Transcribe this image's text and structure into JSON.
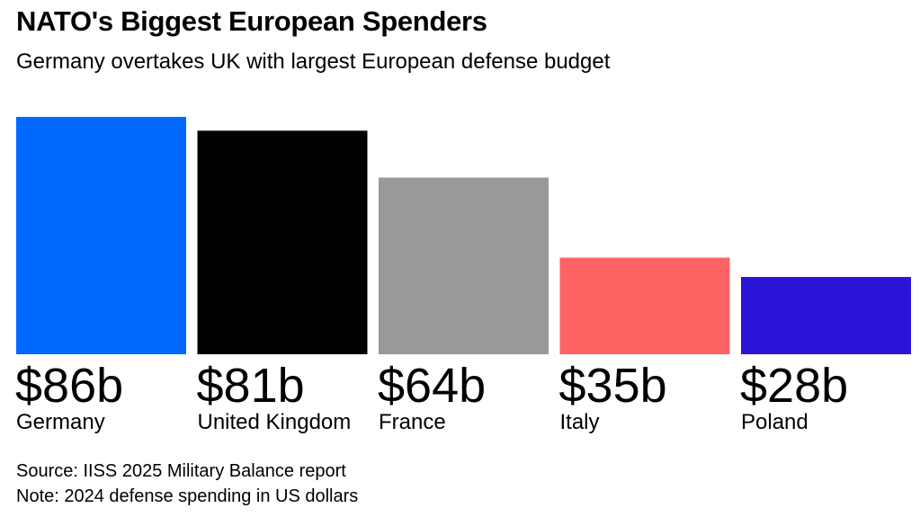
{
  "chart_data": {
    "type": "bar",
    "title": "NATO's Biggest European Spenders",
    "subtitle": "Germany overtakes UK with largest European defense budget",
    "categories": [
      "Germany",
      "United Kingdom",
      "France",
      "Italy",
      "Poland"
    ],
    "values": [
      86,
      81,
      64,
      35,
      28
    ],
    "value_labels": [
      "$86b",
      "$81b",
      "$64b",
      "$35b",
      "$28b"
    ],
    "colors": [
      "#0068FF",
      "#000000",
      "#999999",
      "#FF6464",
      "#2A14D8"
    ],
    "unit": "US dollars (billions)",
    "grid": false,
    "legend": "none",
    "ylim": [
      0,
      86
    ]
  },
  "footer": {
    "source": "Source: IISS 2025 Military Balance report",
    "note": "Note: 2024 defense spending in US dollars"
  }
}
